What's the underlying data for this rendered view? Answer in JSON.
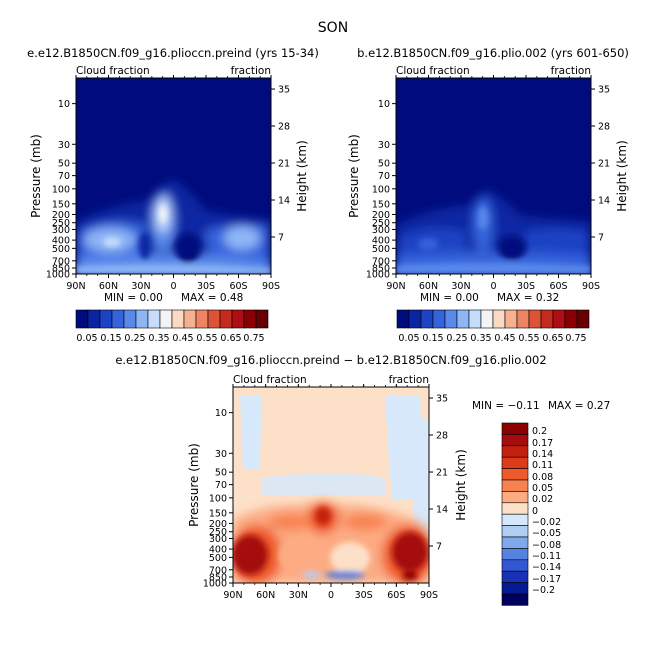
{
  "figure_title": "SON",
  "chart_data": [
    {
      "type": "heatmap",
      "title": "e.e12.B1850CN.f09_g16.plioccn.preind (yrs 15-34)",
      "left_subtitle": "Cloud fraction",
      "right_subtitle": "fraction",
      "ylabel": "Pressure (mb)",
      "ylabel_right": "Height (km)",
      "x_ticks": [
        "90N",
        "60N",
        "30N",
        "0",
        "30S",
        "60S",
        "90S"
      ],
      "y_ticks": [
        "10",
        "30",
        "50",
        "70",
        "100",
        "150",
        "200",
        "250",
        "300",
        "400",
        "500",
        "700",
        "850",
        "1000"
      ],
      "height_ticks": [
        "35",
        "28",
        "21",
        "14",
        "7"
      ],
      "min_label": "MIN =   0.00",
      "max_label": "MAX =  0.48",
      "min": 0.0,
      "max": 0.48,
      "levels": [
        "0.05",
        "0.15",
        "0.25",
        "0.35",
        "0.45",
        "0.55",
        "0.65",
        "0.75"
      ]
    },
    {
      "type": "heatmap",
      "title": "b.e12.B1850CN.f09_g16.plio.002 (yrs 601-650)",
      "left_subtitle": "Cloud fraction",
      "right_subtitle": "fraction",
      "ylabel": "Pressure (mb)",
      "ylabel_right": "Height (km)",
      "x_ticks": [
        "90N",
        "60N",
        "30N",
        "0",
        "30S",
        "60S",
        "90S"
      ],
      "y_ticks": [
        "10",
        "30",
        "50",
        "70",
        "100",
        "150",
        "200",
        "250",
        "300",
        "400",
        "500",
        "700",
        "850",
        "1000"
      ],
      "height_ticks": [
        "35",
        "28",
        "21",
        "14",
        "7"
      ],
      "min_label": "MIN =   0.00",
      "max_label": "MAX =  0.32",
      "min": 0.0,
      "max": 0.32,
      "levels": [
        "0.05",
        "0.15",
        "0.25",
        "0.35",
        "0.45",
        "0.55",
        "0.65",
        "0.75"
      ]
    },
    {
      "type": "heatmap",
      "title": "e.e12.B1850CN.f09_g16.plioccn.preind − b.e12.B1850CN.f09_g16.plio.002",
      "left_subtitle": "Cloud fraction",
      "right_subtitle": "fraction",
      "ylabel": "Pressure (mb)",
      "ylabel_right": "Height (km)",
      "x_ticks": [
        "90N",
        "60N",
        "30N",
        "0",
        "30S",
        "60S",
        "90S"
      ],
      "y_ticks": [
        "10",
        "30",
        "50",
        "70",
        "100",
        "150",
        "200",
        "250",
        "300",
        "400",
        "500",
        "700",
        "850",
        "1000"
      ],
      "height_ticks": [
        "35",
        "28",
        "21",
        "14",
        "7"
      ],
      "min_label": "MIN =  −0.11",
      "max_label": "MAX =   0.27",
      "min": -0.11,
      "max": 0.27,
      "levels": [
        "0.2",
        "0.17",
        "0.14",
        "0.11",
        "0.08",
        "0.05",
        "0.02",
        "0",
        "−0.02",
        "−0.05",
        "−0.08",
        "−0.11",
        "−0.14",
        "−0.17",
        "−0.2"
      ]
    }
  ],
  "colors": {
    "seq": [
      "#000c7d",
      "#0a25a3",
      "#1c43c4",
      "#3563dc",
      "#5989eb",
      "#8eb6f7",
      "#c6dcfb",
      "#f4f4f8",
      "#fbd9c2",
      "#f6b190",
      "#ee8462",
      "#dc5437",
      "#c62a1d",
      "#ad0f12",
      "#880006",
      "#670003"
    ],
    "div": [
      "#8b0000",
      "#a50d0d",
      "#c4200f",
      "#dc3b17",
      "#ee5a2c",
      "#f88150",
      "#fcab82",
      "#fde0c8",
      "#d7e8fa",
      "#aeceF4",
      "#7fa9ec",
      "#5581e1",
      "#3157d2",
      "#1732b6",
      "#031a93",
      "#00005d"
    ]
  }
}
